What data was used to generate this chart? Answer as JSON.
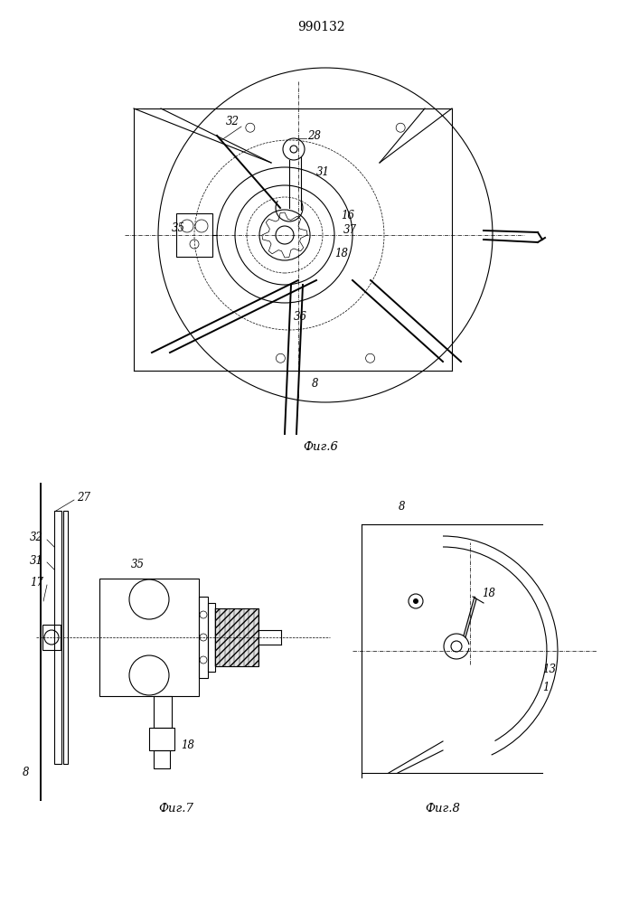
{
  "title": "990132",
  "fig6_label": "Фиг.6",
  "fig7_label": "Фиг.7",
  "fig8_label": "Фиг.8",
  "bg_color": "#ffffff",
  "line_color": "#000000"
}
